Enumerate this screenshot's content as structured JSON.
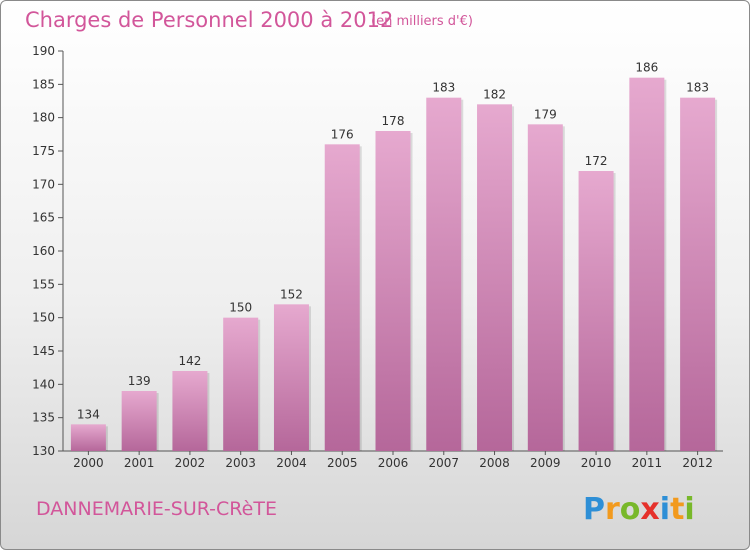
{
  "chart_data": {
    "type": "bar",
    "title": "Charges de Personnel 2000 à 2012",
    "subtitle": "(en milliers d'€)",
    "xlabel": "",
    "ylabel": "",
    "categories": [
      "2000",
      "2001",
      "2002",
      "2003",
      "2004",
      "2005",
      "2006",
      "2007",
      "2008",
      "2009",
      "2010",
      "2011",
      "2012"
    ],
    "values": [
      134,
      139,
      142,
      150,
      152,
      176,
      178,
      183,
      182,
      179,
      172,
      186,
      183
    ],
    "ylim": [
      130,
      190
    ],
    "yticks": [
      130,
      135,
      140,
      145,
      150,
      155,
      160,
      165,
      170,
      175,
      180,
      185,
      190
    ],
    "grid": false,
    "bar_color": "#e3a6cc"
  },
  "footer": {
    "town": "DANNEMARIE-SUR-CRèTE",
    "logo_letters": [
      {
        "ch": "P",
        "color": "#2e8fd6"
      },
      {
        "ch": "r",
        "color": "#f29a1e"
      },
      {
        "ch": "o",
        "color": "#78b82a"
      },
      {
        "ch": "x",
        "color": "#e5312b"
      },
      {
        "ch": "i",
        "color": "#2e8fd6"
      },
      {
        "ch": "t",
        "color": "#f29a1e"
      },
      {
        "ch": "i",
        "color": "#78b82a"
      }
    ]
  }
}
